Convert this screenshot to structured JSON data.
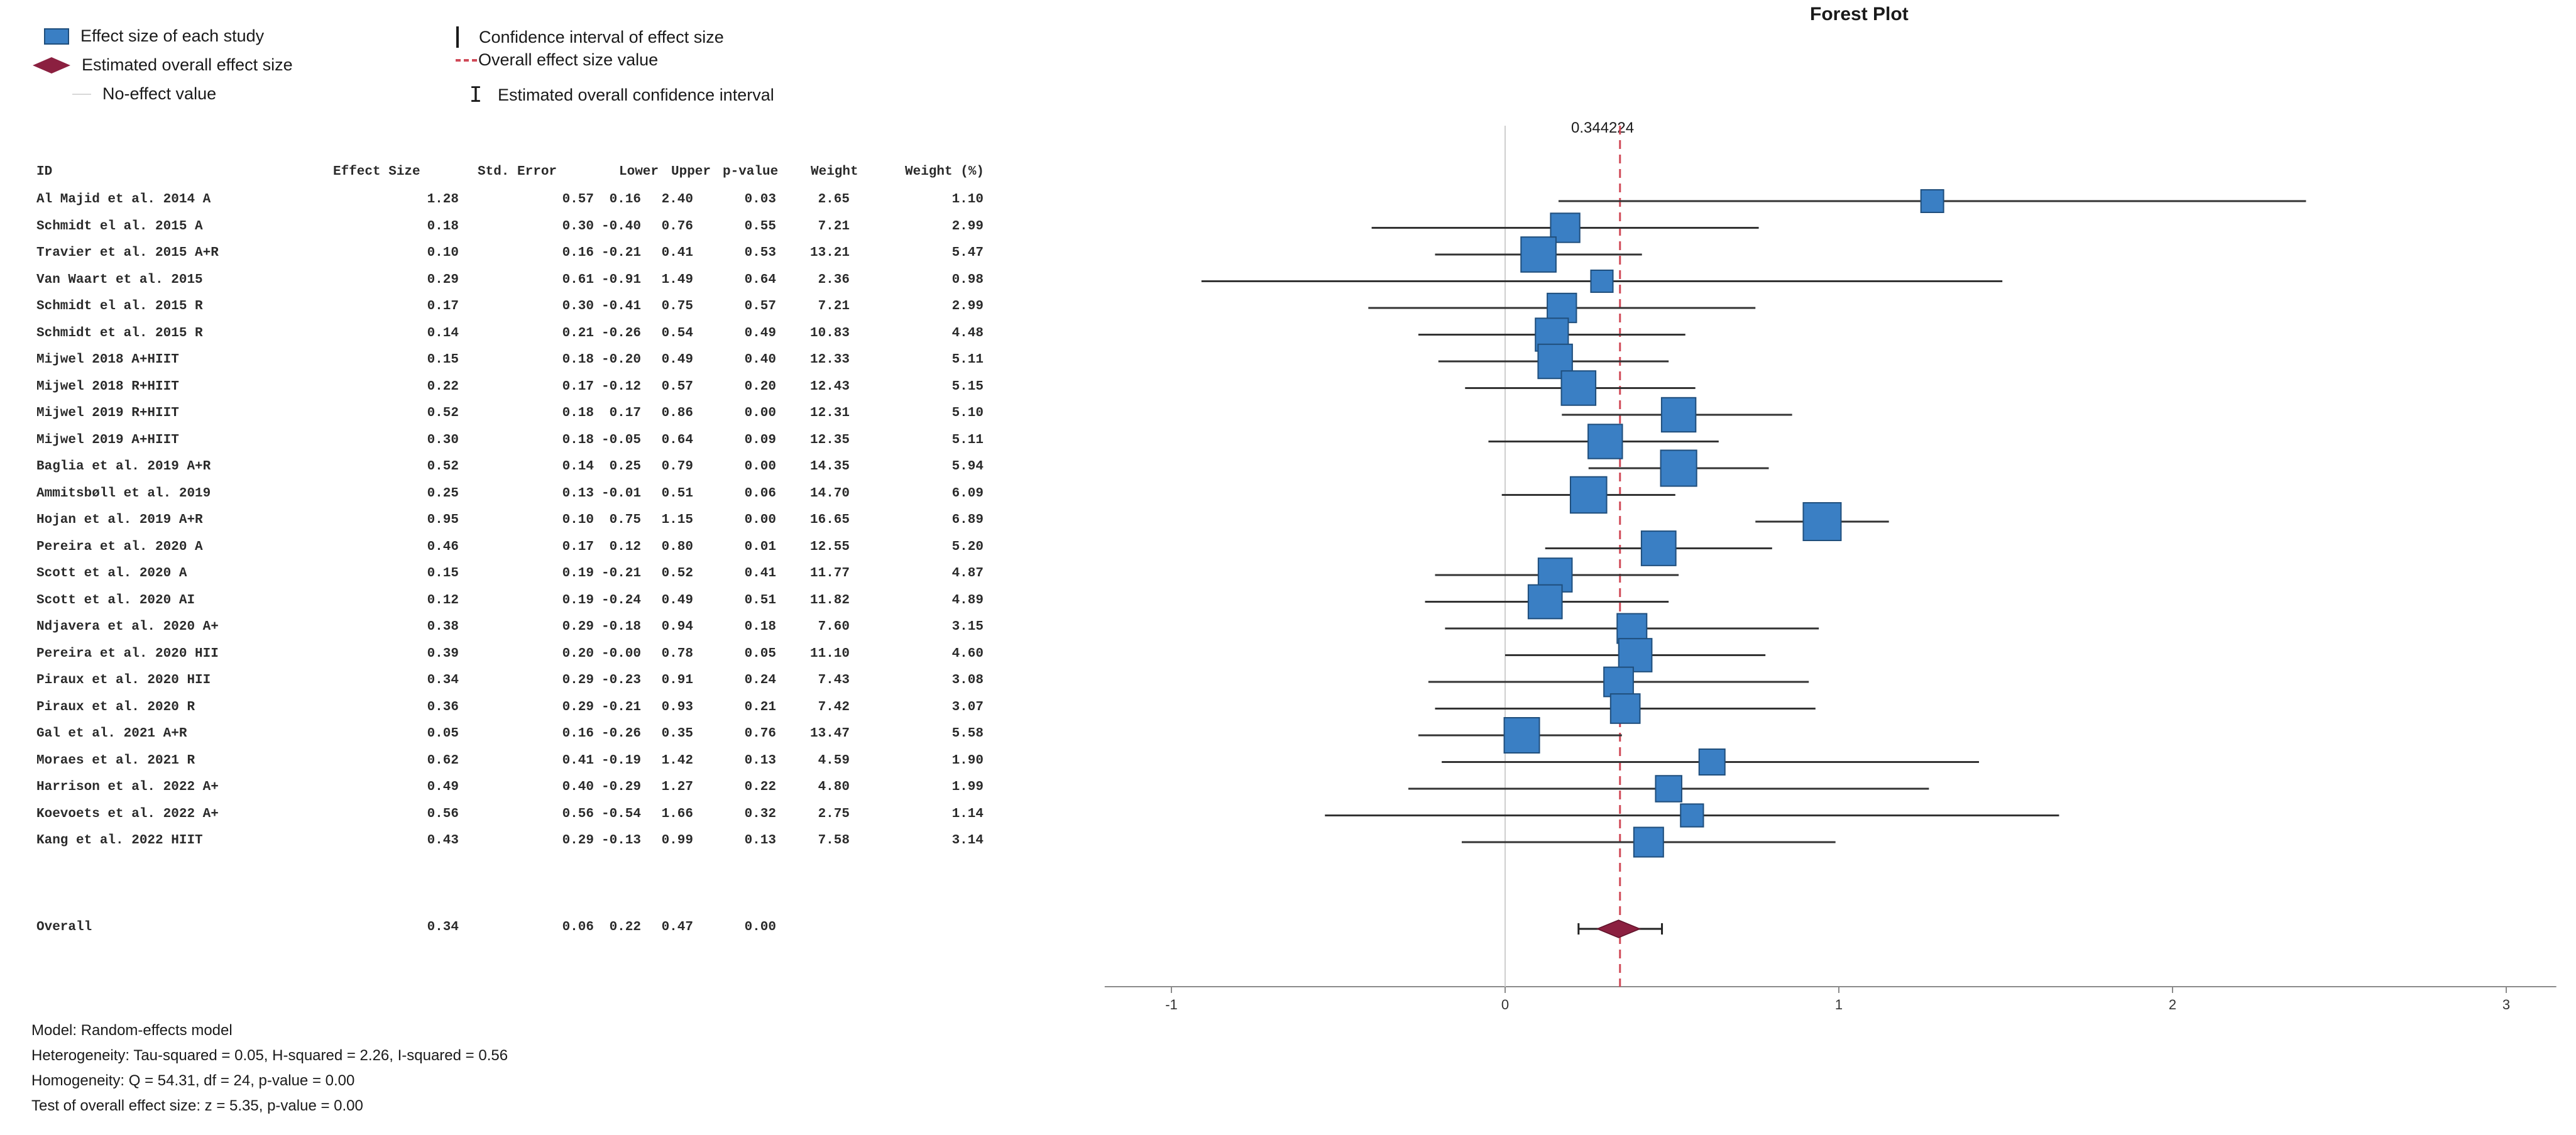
{
  "legend": {
    "study_effect": "Effect size of each study",
    "overall_effect": "Estimated overall effect size",
    "no_effect": "No-effect value",
    "ci_study": "Confidence interval of effect size",
    "overall_value": "Overall effect size value",
    "ci_overall": "Estimated overall confidence interval"
  },
  "colors": {
    "box": "#3a7fc4",
    "box_border": "#1f4e7c",
    "diamond": "#8b2040",
    "ref_line": "#d04a58",
    "ci": "#333333"
  },
  "table": {
    "headers": [
      "ID",
      "Effect Size",
      "Std. Error",
      "Lower",
      "Upper",
      "p-value",
      "Weight",
      "Weight (%)"
    ],
    "overall": {
      "id": "Overall",
      "es": "0.34",
      "se": "0.06",
      "lower": "0.22",
      "upper": "0.47",
      "p": "0.00"
    }
  },
  "chart_data": {
    "type": "forest",
    "title": "Forest Plot",
    "overall_label": "0.344224",
    "xlim": [
      -1.2,
      3.15
    ],
    "x_ticks": [
      "-1",
      "0",
      "1",
      "2",
      "3"
    ],
    "x_tick_values": [
      -1,
      0,
      1,
      2,
      3
    ],
    "no_effect_value": 0,
    "overall_value": 0.344224,
    "overall": {
      "es": 0.34,
      "lower": 0.22,
      "upper": 0.47
    },
    "studies": [
      {
        "id": "Al Majid et al. 2014  A",
        "es": "1.28",
        "se": "0.57",
        "lo": "0.16",
        "up": "2.40",
        "p": "0.03",
        "w": "2.65",
        "wp": "1.10"
      },
      {
        "id": "Schmidt el al. 2015 A",
        "es": "0.18",
        "se": "0.30",
        "lo": "-0.40",
        "up": "0.76",
        "p": "0.55",
        "w": "7.21",
        "wp": "2.99"
      },
      {
        "id": "Travier et al. 2015 A+R",
        "es": "0.10",
        "se": "0.16",
        "lo": "-0.21",
        "up": "0.41",
        "p": "0.53",
        "w": "13.21",
        "wp": "5.47"
      },
      {
        "id": "Van Waart et al.  2015",
        "es": "0.29",
        "se": "0.61",
        "lo": "-0.91",
        "up": "1.49",
        "p": "0.64",
        "w": "2.36",
        "wp": "0.98"
      },
      {
        "id": "Schmidt el al. 2015 R",
        "es": "0.17",
        "se": "0.30",
        "lo": "-0.41",
        "up": "0.75",
        "p": "0.57",
        "w": "7.21",
        "wp": "2.99"
      },
      {
        "id": "Schmidt et al. 2015 R",
        "es": "0.14",
        "se": "0.21",
        "lo": "-0.26",
        "up": "0.54",
        "p": "0.49",
        "w": "10.83",
        "wp": "4.48"
      },
      {
        "id": "Mijwel 2018 A+HIIT",
        "es": "0.15",
        "se": "0.18",
        "lo": "-0.20",
        "up": "0.49",
        "p": "0.40",
        "w": "12.33",
        "wp": "5.11"
      },
      {
        "id": "Mijwel 2018 R+HIIT",
        "es": "0.22",
        "se": "0.17",
        "lo": "-0.12",
        "up": "0.57",
        "p": "0.20",
        "w": "12.43",
        "wp": "5.15"
      },
      {
        "id": "Mijwel 2019 R+HIIT",
        "es": "0.52",
        "se": "0.18",
        "lo": "0.17",
        "up": "0.86",
        "p": "0.00",
        "w": "12.31",
        "wp": "5.10"
      },
      {
        "id": "Mijwel 2019 A+HIIT",
        "es": "0.30",
        "se": "0.18",
        "lo": "-0.05",
        "up": "0.64",
        "p": "0.09",
        "w": "12.35",
        "wp": "5.11"
      },
      {
        "id": "Baglia et al. 2019  A+R",
        "es": "0.52",
        "se": "0.14",
        "lo": "0.25",
        "up": "0.79",
        "p": "0.00",
        "w": "14.35",
        "wp": "5.94"
      },
      {
        "id": "Ammitsbøll et al. 2019",
        "es": "0.25",
        "se": "0.13",
        "lo": "-0.01",
        "up": "0.51",
        "p": "0.06",
        "w": "14.70",
        "wp": "6.09"
      },
      {
        "id": "Hojan et al. 2019 A+R",
        "es": "0.95",
        "se": "0.10",
        "lo": "0.75",
        "up": "1.15",
        "p": "0.00",
        "w": "16.65",
        "wp": "6.89"
      },
      {
        "id": "Pereira et al. 2020 A",
        "es": "0.46",
        "se": "0.17",
        "lo": "0.12",
        "up": "0.80",
        "p": "0.01",
        "w": "12.55",
        "wp": "5.20"
      },
      {
        "id": "Scott et al. 2020 A",
        "es": "0.15",
        "se": "0.19",
        "lo": "-0.21",
        "up": "0.52",
        "p": "0.41",
        "w": "11.77",
        "wp": "4.87"
      },
      {
        "id": "Scott et al. 2020 AI",
        "es": "0.12",
        "se": "0.19",
        "lo": "-0.24",
        "up": "0.49",
        "p": "0.51",
        "w": "11.82",
        "wp": "4.89"
      },
      {
        "id": "Ndjavera et al. 2020 A+",
        "es": "0.38",
        "se": "0.29",
        "lo": "-0.18",
        "up": "0.94",
        "p": "0.18",
        "w": "7.60",
        "wp": "3.15"
      },
      {
        "id": "Pereira et al. 2020 HII",
        "es": "0.39",
        "se": "0.20",
        "lo": "-0.00",
        "up": "0.78",
        "p": "0.05",
        "w": "11.10",
        "wp": "4.60"
      },
      {
        "id": "Piraux et al. 2020  HII",
        "es": "0.34",
        "se": "0.29",
        "lo": "-0.23",
        "up": "0.91",
        "p": "0.24",
        "w": "7.43",
        "wp": "3.08"
      },
      {
        "id": "Piraux et al. 2020  R",
        "es": "0.36",
        "se": "0.29",
        "lo": "-0.21",
        "up": "0.93",
        "p": "0.21",
        "w": "7.42",
        "wp": "3.07"
      },
      {
        "id": "Gal et al. 2021  A+R",
        "es": "0.05",
        "se": "0.16",
        "lo": "-0.26",
        "up": "0.35",
        "p": "0.76",
        "w": "13.47",
        "wp": "5.58"
      },
      {
        "id": "Moraes et al. 2021 R",
        "es": "0.62",
        "se": "0.41",
        "lo": "-0.19",
        "up": "1.42",
        "p": "0.13",
        "w": "4.59",
        "wp": "1.90"
      },
      {
        "id": "Harrison et al. 2022 A+",
        "es": "0.49",
        "se": "0.40",
        "lo": "-0.29",
        "up": "1.27",
        "p": "0.22",
        "w": "4.80",
        "wp": "1.99"
      },
      {
        "id": "Koevoets et al. 2022 A+",
        "es": "0.56",
        "se": "0.56",
        "lo": "-0.54",
        "up": "1.66",
        "p": "0.32",
        "w": "2.75",
        "wp": "1.14"
      },
      {
        "id": "Kang et al. 2022 HIIT",
        "es": "0.43",
        "se": "0.29",
        "lo": "-0.13",
        "up": "0.99",
        "p": "0.13",
        "w": "7.58",
        "wp": "3.14"
      }
    ]
  },
  "footer": {
    "model": "Model: Random-effects model",
    "heterogeneity": "Heterogeneity: Tau-squared = 0.05, H-squared = 2.26, I-squared = 0.56",
    "homogeneity": "Homogeneity: Q = 54.31, df = 24, p-value = 0.00",
    "test": "Test of overall effect size: z = 5.35, p-value = 0.00"
  }
}
